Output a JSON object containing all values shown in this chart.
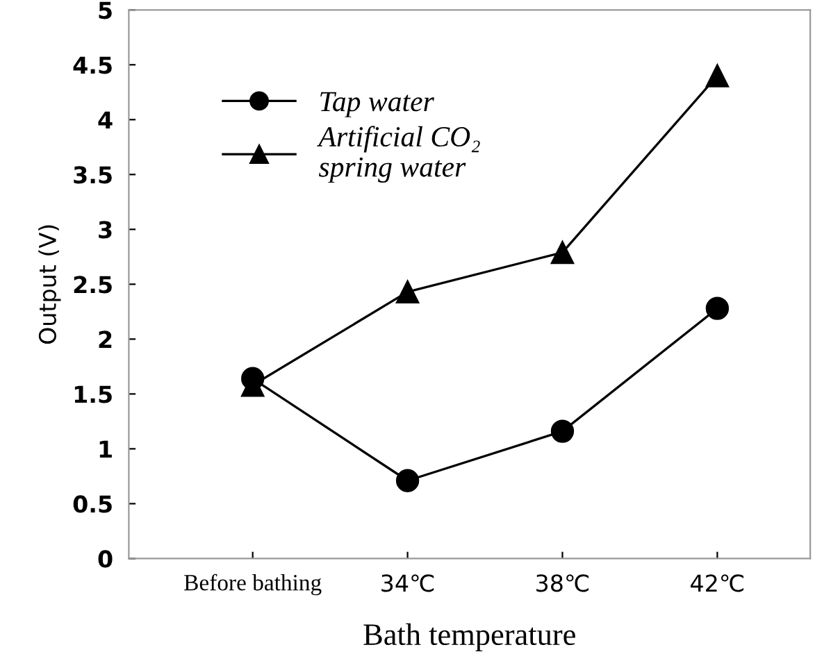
{
  "chart_data": {
    "type": "line",
    "xlabel": "Bath temperature",
    "ylabel": "Output (V)",
    "categories": [
      "Before bathing",
      "34℃",
      "38℃",
      "42℃"
    ],
    "series": [
      {
        "name": "Tap water",
        "color": "#000000",
        "marker": "circle",
        "values": [
          1.64,
          0.71,
          1.16,
          2.28
        ]
      },
      {
        "name": "Artificial CO₂\nspring water",
        "color": "#000000",
        "marker": "triangle",
        "values": [
          1.58,
          2.43,
          2.79,
          4.4
        ]
      }
    ],
    "ylim": [
      0,
      5
    ],
    "yticks": [
      0,
      0.5,
      1,
      1.5,
      2,
      2.5,
      3,
      3.5,
      4,
      4.5,
      5
    ],
    "grid": false,
    "legend": "top left",
    "line_style": "solid"
  }
}
